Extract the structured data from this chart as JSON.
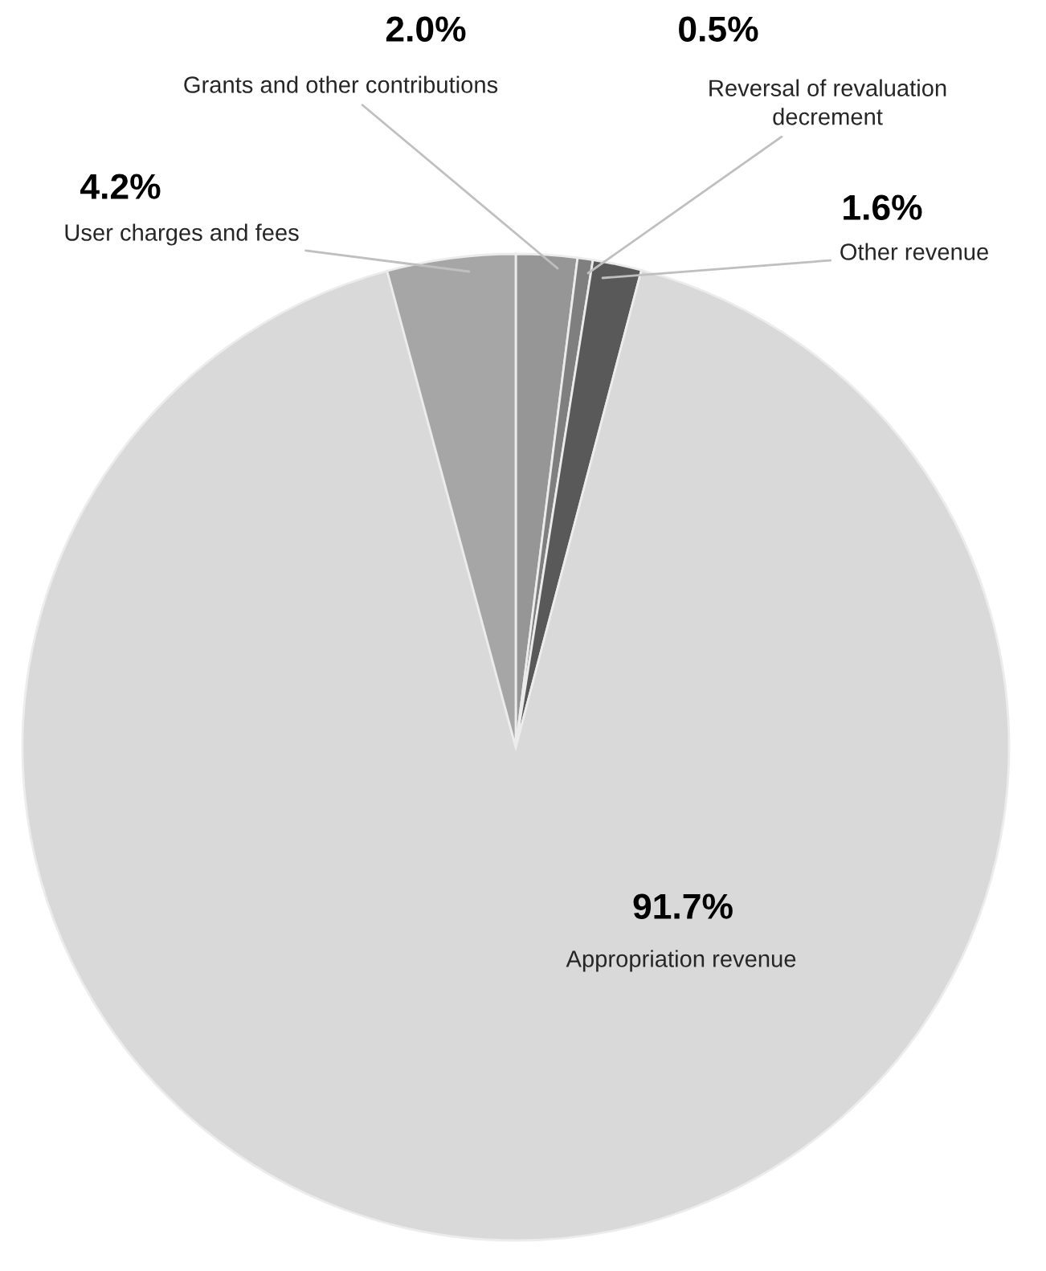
{
  "chart_data": {
    "type": "pie",
    "categories": [
      "Grants and other contributions",
      "Reversal of revaluation\ndecrement",
      "Other revenue",
      "Appropriation revenue",
      "User charges and fees"
    ],
    "values": [
      2.0,
      0.5,
      1.6,
      91.7,
      4.2
    ],
    "value_labels": [
      "2.0%",
      "0.5%",
      "1.6%",
      "91.7%",
      "4.2%"
    ],
    "colors": [
      "#969696",
      "#7f7f7f",
      "#595959",
      "#d9d9d9",
      "#a6a6a6"
    ]
  }
}
